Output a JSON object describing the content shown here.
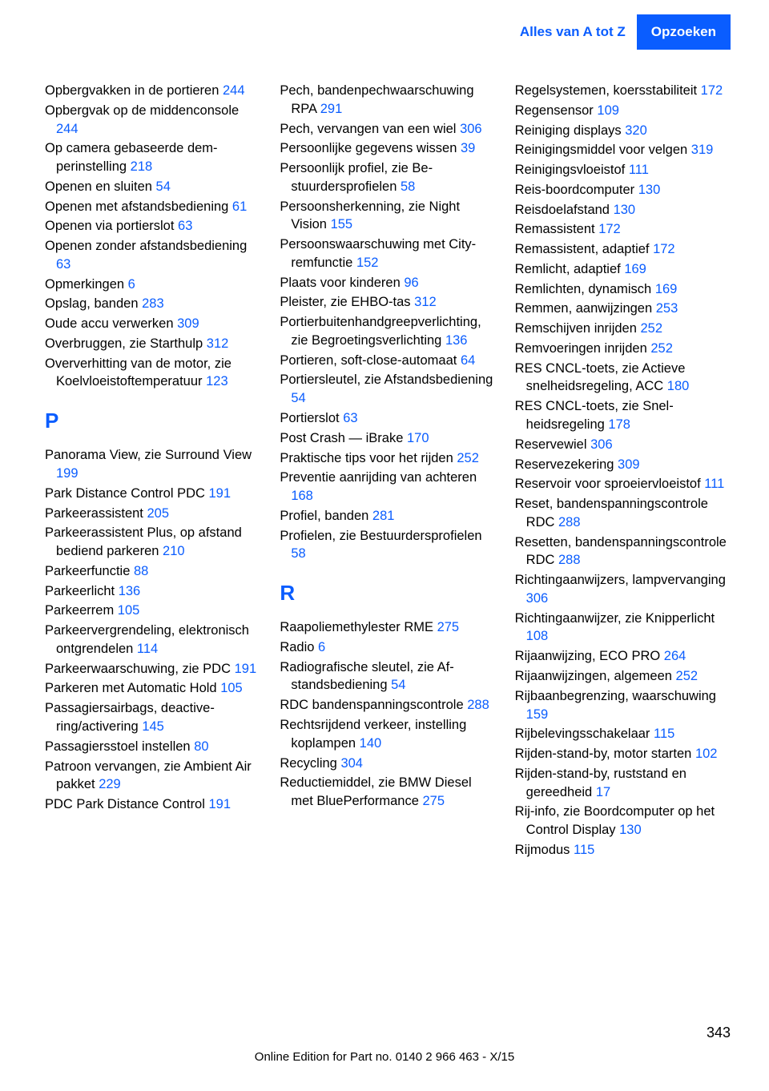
{
  "header": {
    "left": "Alles van A tot Z",
    "right": "Opzoeken"
  },
  "columns": [
    {
      "items": [
        {
          "text": "Opbergvakken in de portie­ren ",
          "page": "244"
        },
        {
          "text": "Opbergvak op de middencon­sole ",
          "page": "244"
        },
        {
          "text": "Op camera gebaseerde dem­perinstelling ",
          "page": "218"
        },
        {
          "text": "Openen en sluiten ",
          "page": "54"
        },
        {
          "text": "Openen met afstandsbedie­ning ",
          "page": "61"
        },
        {
          "text": "Openen via portierslot ",
          "page": "63"
        },
        {
          "text": "Openen zonder afstandsbe­diening ",
          "page": "63"
        },
        {
          "text": "Opmerkingen ",
          "page": "6"
        },
        {
          "text": "Opslag, banden ",
          "page": "283"
        },
        {
          "text": "Oude accu verwerken ",
          "page": "309"
        },
        {
          "text": "Overbruggen, zie Start­hulp ",
          "page": "312"
        },
        {
          "text": "Oververhitting van de motor, zie Koelvloeistoftempera­tuur ",
          "page": "123"
        }
      ],
      "section": "P",
      "items2": [
        {
          "text": "Panorama View, zie Surround View ",
          "page": "199"
        },
        {
          "text": "Park Distance Control PDC ",
          "page": "191"
        },
        {
          "text": "Parkeerassistent ",
          "page": "205"
        },
        {
          "text": "Parkeerassistent Plus, op af­stand bediend parkeren ",
          "page": "210"
        },
        {
          "text": "Parkeerfunctie ",
          "page": "88"
        },
        {
          "text": "Parkeerlicht ",
          "page": "136"
        },
        {
          "text": "Parkeerrem ",
          "page": "105"
        },
        {
          "text": "Parkeervergrendeling, elek­tronisch ontgrendelen ",
          "page": "114"
        },
        {
          "text": "Parkeerwaarschuwing, zie PDC ",
          "page": "191"
        },
        {
          "text": "Parkeren met Automatic Hold ",
          "page": "105"
        },
        {
          "text": "Passagiersairbags, deactive­ring/activering ",
          "page": "145"
        },
        {
          "text": "Passagiersstoel instellen ",
          "page": "80"
        },
        {
          "text": "Patroon vervangen, zie Ambi­ent Air pakket ",
          "page": "229"
        },
        {
          "text": "PDC Park Distance Con­trol ",
          "page": "191"
        }
      ]
    },
    {
      "items": [
        {
          "text": "Pech, bandenpechwaarschu­wing RPA ",
          "page": "291"
        },
        {
          "text": "Pech, vervangen van een wiel ",
          "page": "306"
        },
        {
          "text": "Persoonlijke gegevens wis­sen ",
          "page": "39"
        },
        {
          "text": "Persoonlijk profiel, zie Be­stuurdersprofielen ",
          "page": "58"
        },
        {
          "text": "Persoonsherkenning, zie Night Vision ",
          "page": "155"
        },
        {
          "text": "Persoonswaarschuwing met City-remfunctie ",
          "page": "152"
        },
        {
          "text": "Plaats voor kinderen ",
          "page": "96"
        },
        {
          "text": "Pleister, zie EHBO-tas ",
          "page": "312"
        },
        {
          "text": "Portierbuitenhandgreepver­lichting, zie Begroetingsver­lichting ",
          "page": "136"
        },
        {
          "text": "Portieren, soft-close-auto­maat ",
          "page": "64"
        },
        {
          "text": "Portiersleutel, zie Afstands­bediening ",
          "page": "54"
        },
        {
          "text": "Portierslot ",
          "page": "63"
        },
        {
          "text": "Post Crash — iBrake ",
          "page": "170"
        },
        {
          "text": "Praktische tips voor het rij­den ",
          "page": "252"
        },
        {
          "text": "Preventie aanrijding van ach­teren ",
          "page": "168"
        },
        {
          "text": "Profiel, banden ",
          "page": "281"
        },
        {
          "text": "Profielen, zie Bestuurderspro­fielen ",
          "page": "58"
        }
      ],
      "section": "R",
      "items2": [
        {
          "text": "Raapoliemethylester RME ",
          "page": "275"
        },
        {
          "text": "Radio ",
          "page": "6"
        },
        {
          "text": "Radiografische sleutel, zie Af­standsbediening ",
          "page": "54"
        },
        {
          "text": "RDC bandenspanningscon­trole ",
          "page": "288"
        },
        {
          "text": "Rechtsrijdend verkeer, instel­ling koplampen ",
          "page": "140"
        },
        {
          "text": "Recycling ",
          "page": "304"
        },
        {
          "text": "Reductiemiddel, zie BMW Diesel met BluePerfor­mance ",
          "page": "275"
        }
      ]
    },
    {
      "items": [
        {
          "text": "Regelsystemen, koersstabili­teit ",
          "page": "172"
        },
        {
          "text": "Regensensor ",
          "page": "109"
        },
        {
          "text": "Reiniging displays ",
          "page": "320"
        },
        {
          "text": "Reinigingsmiddel voor vel­gen ",
          "page": "319"
        },
        {
          "text": "Reinigingsvloeistof ",
          "page": "111"
        },
        {
          "text": "Reis-boordcomputer ",
          "page": "130"
        },
        {
          "text": "Reisdoelafstand ",
          "page": "130"
        },
        {
          "text": "Remassistent ",
          "page": "172"
        },
        {
          "text": "Remassistent, adaptief ",
          "page": "172"
        },
        {
          "text": "Remlicht, adaptief ",
          "page": "169"
        },
        {
          "text": "Remlichten, dynamisch ",
          "page": "169"
        },
        {
          "text": "Remmen, aanwijzingen ",
          "page": "253"
        },
        {
          "text": "Remschijven inrijden ",
          "page": "252"
        },
        {
          "text": "Remvoeringen inrijden ",
          "page": "252"
        },
        {
          "text": "RES CNCL-toets, zie Actieve snelheidsregeling, ACC ",
          "page": "180"
        },
        {
          "text": "RES CNCL-toets, zie Snel­heidsregeling ",
          "page": "178"
        },
        {
          "text": "Reservewiel ",
          "page": "306"
        },
        {
          "text": "Reservezekering ",
          "page": "309"
        },
        {
          "text": "Reservoir voor sproeiervloei­stof ",
          "page": "111"
        },
        {
          "text": "Reset, bandenspanningscon­trole RDC ",
          "page": "288"
        },
        {
          "text": "Resetten, bandenspannings­controle RDC ",
          "page": "288"
        },
        {
          "text": "Richtingaanwijzers, lampver­vanging ",
          "page": "306"
        },
        {
          "text": "Richtingaanwijzer, zie Knip­perlicht ",
          "page": "108"
        },
        {
          "text": "Rijaanwijzing, ECO PRO ",
          "page": "264"
        },
        {
          "text": "Rijaanwijzingen, alge­meen ",
          "page": "252"
        },
        {
          "text": "Rijbaanbegrenzing, waar­schuwing ",
          "page": "159"
        },
        {
          "text": "Rijbelevingsschakelaar ",
          "page": "115"
        },
        {
          "text": "Rijden-stand-by, motor star­ten ",
          "page": "102"
        },
        {
          "text": "Rijden-stand-by, ruststand en gereedheid ",
          "page": "17"
        },
        {
          "text": "Rij-info, zie Boordcomputer op het Control Display ",
          "page": "130"
        },
        {
          "text": "Rijmodus ",
          "page": "115"
        }
      ]
    }
  ],
  "pageNumber": "343",
  "footer": "Online Edition for Part no. 0140 2 966 463 - X/15"
}
